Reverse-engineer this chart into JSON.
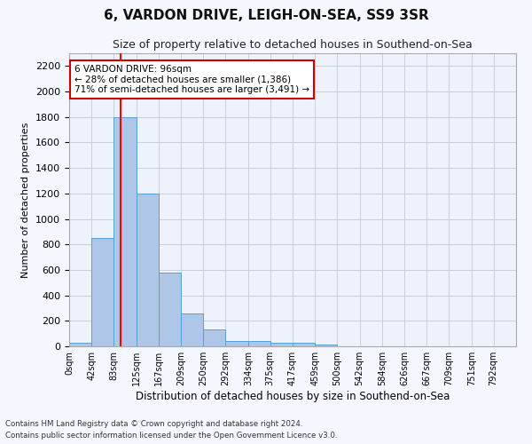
{
  "title": "6, VARDON DRIVE, LEIGH-ON-SEA, SS9 3SR",
  "subtitle": "Size of property relative to detached houses in Southend-on-Sea",
  "xlabel": "Distribution of detached houses by size in Southend-on-Sea",
  "ylabel": "Number of detached properties",
  "bin_edges": [
    0,
    42,
    83,
    125,
    167,
    209,
    250,
    292,
    334,
    375,
    417,
    459,
    500,
    542,
    584,
    626,
    667,
    709,
    751,
    792,
    834
  ],
  "bar_heights": [
    30,
    850,
    1800,
    1200,
    580,
    255,
    130,
    45,
    45,
    30,
    25,
    15,
    0,
    0,
    0,
    0,
    0,
    0,
    0,
    0
  ],
  "bar_color": "#aec6e8",
  "bar_edge_color": "#5a9fd4",
  "red_line_x": 96,
  "ylim": [
    0,
    2300
  ],
  "yticks": [
    0,
    200,
    400,
    600,
    800,
    1000,
    1200,
    1400,
    1600,
    1800,
    2000,
    2200
  ],
  "annotation_text": "6 VARDON DRIVE: 96sqm\n← 28% of detached houses are smaller (1,386)\n71% of semi-detached houses are larger (3,491) →",
  "annotation_box_color": "#ffffff",
  "annotation_box_edge_color": "#cc0000",
  "bg_color": "#eef2fb",
  "fig_bg_color": "#f5f7ff",
  "grid_color": "#c8cee0",
  "footer_line1": "Contains HM Land Registry data © Crown copyright and database right 2024.",
  "footer_line2": "Contains public sector information licensed under the Open Government Licence v3.0."
}
